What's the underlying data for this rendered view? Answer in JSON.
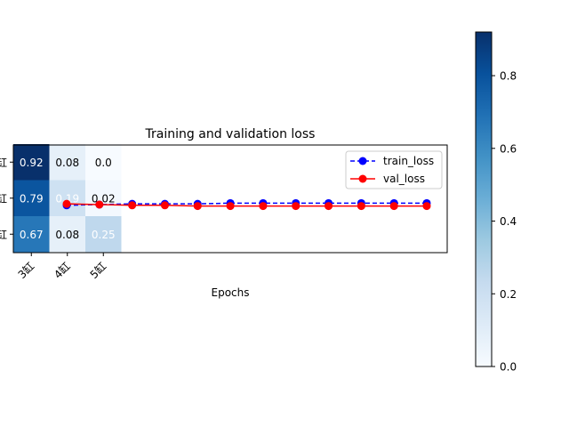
{
  "chart_data": [
    {
      "type": "heatmap",
      "xticklabels": [
        "3缸",
        "4缸",
        "5缸"
      ],
      "yticklabels": [
        "缸",
        "缸",
        "缸"
      ],
      "cells": [
        [
          "0.92",
          "0.08",
          "0.0"
        ],
        [
          "0.79",
          "0.19",
          "0.02"
        ],
        [
          "0.67",
          "0.08",
          "0.25"
        ]
      ],
      "values": [
        [
          0.92,
          0.08,
          0.0
        ],
        [
          0.79,
          0.19,
          0.02
        ],
        [
          0.67,
          0.08,
          0.25
        ]
      ],
      "colorbar": {
        "ticks": [
          "0.0",
          "0.2",
          "0.4",
          "0.6",
          "0.8"
        ],
        "range": [
          0,
          0.92
        ],
        "cmap": "Blues"
      }
    },
    {
      "type": "line",
      "title": "Training and validation loss",
      "xlabel": "Epochs",
      "ylabel": "",
      "x": [
        1,
        2,
        3,
        4,
        5,
        6,
        7,
        8,
        9,
        10,
        11,
        12
      ],
      "ylim": [
        0,
        1.5
      ],
      "series": [
        {
          "name": "train_loss",
          "color": "#0000ff",
          "style": "dashed-circle",
          "values": [
            0.66,
            0.67,
            0.68,
            0.68,
            0.68,
            0.69,
            0.69,
            0.69,
            0.69,
            0.69,
            0.69,
            0.69
          ]
        },
        {
          "name": "val_loss",
          "color": "#ff0000",
          "style": "solid-circle",
          "values": [
            0.68,
            0.67,
            0.66,
            0.66,
            0.65,
            0.65,
            0.65,
            0.65,
            0.65,
            0.65,
            0.65,
            0.65
          ]
        }
      ],
      "legend": "top-right",
      "grid": false
    }
  ]
}
